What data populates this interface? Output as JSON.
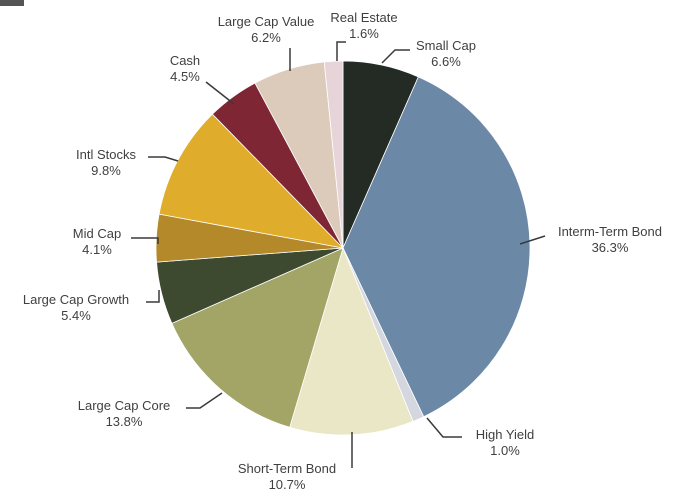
{
  "chart_data": {
    "type": "pie",
    "title": "",
    "start_angle_deg": 0,
    "direction": "clockwise",
    "slices": [
      {
        "label": "Small Cap",
        "pct_text": "6.6%",
        "value": 6.6,
        "color": "#232b24"
      },
      {
        "label": "Interm-Term Bond",
        "pct_text": "36.3%",
        "value": 36.3,
        "color": "#6b88a6"
      },
      {
        "label": "High Yield",
        "pct_text": "1.0%",
        "value": 1.0,
        "color": "#d4d6e0"
      },
      {
        "label": "Short-Term Bond",
        "pct_text": "10.7%",
        "value": 10.7,
        "color": "#e9e7c6"
      },
      {
        "label": "Large Cap Core",
        "pct_text": "13.8%",
        "value": 13.8,
        "color": "#a3a566"
      },
      {
        "label": "Large Cap Growth",
        "pct_text": "5.4%",
        "value": 5.4,
        "color": "#3d4a30"
      },
      {
        "label": "Mid Cap",
        "pct_text": "4.1%",
        "value": 4.1,
        "color": "#b3892a"
      },
      {
        "label": "Intl Stocks",
        "pct_text": "9.8%",
        "value": 9.8,
        "color": "#dfad2b"
      },
      {
        "label": "Cash",
        "pct_text": "4.5%",
        "value": 4.5,
        "color": "#7e2633"
      },
      {
        "label": "Large Cap Value",
        "pct_text": "6.2%",
        "value": 6.2,
        "color": "#dccabb"
      },
      {
        "label": "Real Estate",
        "pct_text": "1.6%",
        "value": 1.6,
        "color": "#e6d4d8"
      }
    ]
  }
}
